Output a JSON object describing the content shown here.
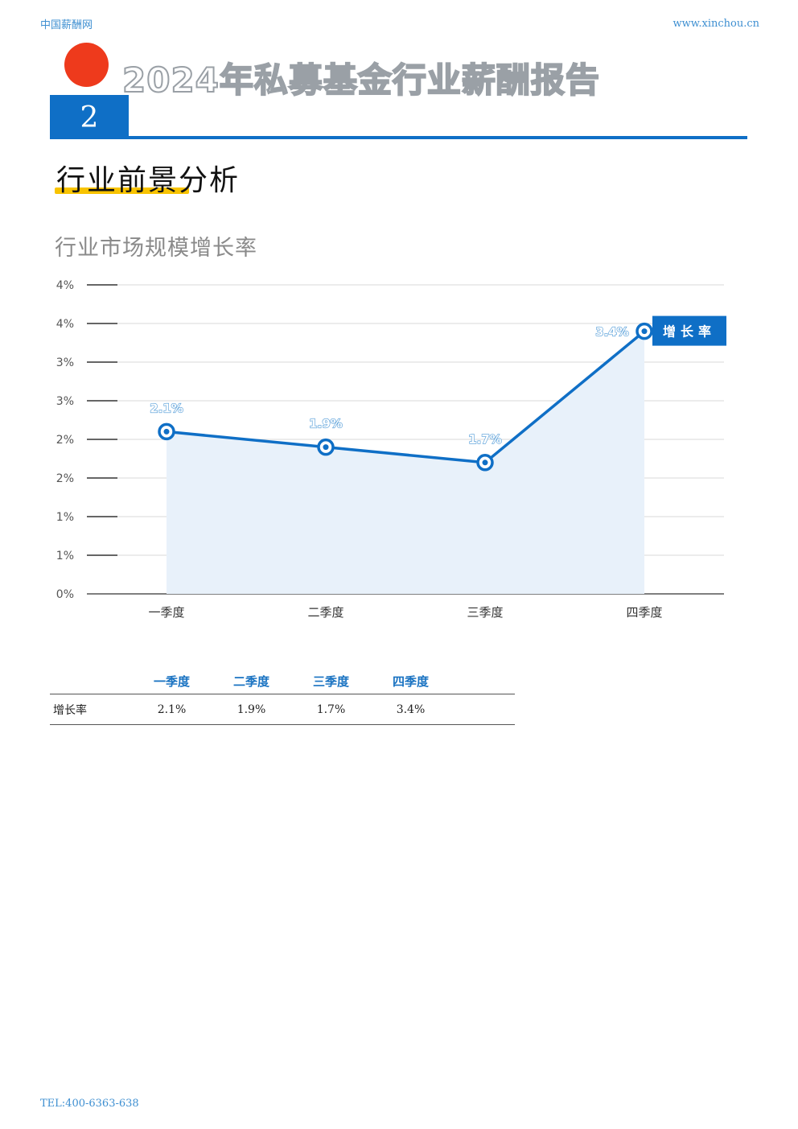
{
  "header": {
    "site_name": "中国薪酬网",
    "site_url": "www.xinchou.cn",
    "report_title": "2024年私募基金行业薪酬报告",
    "chapter_number": "2"
  },
  "section": {
    "title": "行业前景分析"
  },
  "chart_title": "行业市场规模增长率",
  "chart_data": {
    "type": "line",
    "categories": [
      "一季度",
      "二季度",
      "三季度",
      "四季度"
    ],
    "series": [
      {
        "name": "增长率",
        "values": [
          2.1,
          1.9,
          1.7,
          3.4
        ],
        "labels": [
          "2.1%",
          "1.9%",
          "1.7%",
          "3.4%"
        ]
      }
    ],
    "y_ticks": [
      "0%",
      "1%",
      "1%",
      "2%",
      "2%",
      "3%",
      "3%",
      "4%",
      "4%"
    ],
    "ylim": [
      0,
      4
    ],
    "grid": true,
    "area_fill": true,
    "legend_placement": "right",
    "colors": {
      "line": "#0f6fc6",
      "area": "#e8f1fa",
      "grid": "#d9d9d9",
      "label": "#4a97d6"
    }
  },
  "table": {
    "columns": [
      "一季度",
      "二季度",
      "三季度",
      "四季度"
    ],
    "rows": [
      {
        "label": "增长率",
        "values": [
          "2.1%",
          "1.9%",
          "1.7%",
          "3.4%"
        ]
      }
    ]
  },
  "footer": {
    "tel": "TEL:400-6363-638"
  },
  "colors": {
    "brand_blue": "#0f6fc6",
    "accent_red": "#ee3a1c",
    "accent_yellow": "#f8c300"
  }
}
